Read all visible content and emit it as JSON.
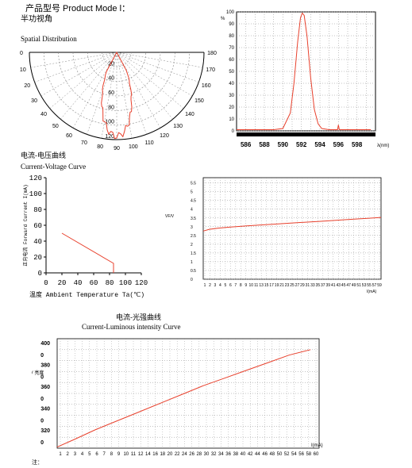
{
  "header": {
    "product_model": "产品型号  Product Mode l：",
    "half_angle_cn": "半功视角"
  },
  "colors": {
    "curve": "#e8402c",
    "grid": "#888888",
    "axis": "#000000"
  },
  "chart_data": [
    {
      "id": "spatial",
      "type": "polar",
      "title": "Spatial Distribution",
      "angle_labels_left": [
        "0",
        "10",
        "20",
        "30",
        "40",
        "50",
        "60",
        "70",
        "80",
        "90"
      ],
      "angle_labels_right": [
        "180",
        "170",
        "160",
        "150",
        "140",
        "130",
        "120",
        "110",
        "100"
      ],
      "radial_labels": [
        "20",
        "40",
        "60",
        "80",
        "100",
        "120"
      ],
      "series": [
        {
          "values_deg": [
            90
          ],
          "half_angle_deg": 20
        }
      ]
    },
    {
      "id": "spectrum",
      "type": "line",
      "ylabel": "%",
      "xlabel": "λ(nm)",
      "xticks": [
        "586",
        "588",
        "590",
        "592",
        "594",
        "596",
        "598"
      ],
      "yticks": [
        "0",
        "10",
        "20",
        "30",
        "40",
        "50",
        "60",
        "70",
        "80",
        "90",
        "100"
      ],
      "xlim": [
        585,
        600
      ],
      "ylim": [
        0,
        100
      ],
      "grid": true,
      "x": [
        585,
        586,
        587,
        588,
        589,
        590,
        590.8,
        591.2,
        591.6,
        591.9,
        592.1,
        592.3,
        592.6,
        593.0,
        593.4,
        593.8,
        594.2,
        595,
        595.9,
        596.0,
        596.1,
        597,
        598,
        599.5
      ],
      "values": [
        1,
        1,
        1,
        1,
        1,
        2,
        15,
        40,
        75,
        95,
        99,
        97,
        80,
        45,
        18,
        6,
        2,
        1,
        1,
        5,
        1,
        1,
        1,
        1
      ]
    },
    {
      "id": "current-temperature",
      "type": "line",
      "title_cn": "电流-电压曲线",
      "title": "Current-Voltage Curve",
      "ylabel": "正向电流 Forward Current I(mA)",
      "xlabel": "温度 Ambient Temperature Ta(℃)",
      "xticks": [
        "0",
        "20",
        "40",
        "60",
        "80",
        "100",
        "120"
      ],
      "yticks": [
        "0",
        "20",
        "40",
        "60",
        "80",
        "100",
        "120"
      ],
      "xlim": [
        0,
        120
      ],
      "ylim": [
        0,
        120
      ],
      "grid": false,
      "x": [
        20,
        85,
        85
      ],
      "values": [
        50,
        12,
        0
      ]
    },
    {
      "id": "voltage-current",
      "type": "line",
      "ylabel": "VF/V",
      "xlabel": "I(mA)",
      "xticks": [
        "1",
        "2",
        "3",
        "4",
        "5",
        "6",
        "7",
        "8",
        "9",
        "10",
        "11",
        "13",
        "15",
        "17",
        "19",
        "21",
        "23",
        "25",
        "27",
        "29",
        "31",
        "33",
        "35",
        "37",
        "39",
        "41",
        "43",
        "45",
        "47",
        "49",
        "51",
        "53",
        "55",
        "57",
        "59"
      ],
      "yticks": [
        "0",
        "0.5",
        "1",
        "1.5",
        "2",
        "2.5",
        "3",
        "3.5",
        "4",
        "4.5",
        "5",
        "5.5"
      ],
      "xlim": [
        1,
        60
      ],
      "ylim": [
        0,
        5.8
      ],
      "grid": true,
      "x": [
        1,
        3,
        6,
        10,
        15,
        20,
        25,
        30,
        35,
        40,
        45,
        50,
        55,
        60
      ],
      "values": [
        2.75,
        2.85,
        2.92,
        2.98,
        3.04,
        3.1,
        3.15,
        3.21,
        3.26,
        3.31,
        3.36,
        3.42,
        3.47,
        3.53
      ]
    },
    {
      "id": "current-luminous",
      "type": "line",
      "title_cn": "电流-光强曲线",
      "title": "Current-Luminous intensity Curve",
      "ylabel": "IV 亮度",
      "xlabel": "I(mA)",
      "xticks": [
        "1",
        "2",
        "3",
        "4",
        "5",
        "6",
        "7",
        "8",
        "9",
        "10",
        "11",
        "12",
        "14",
        "16",
        "18",
        "20",
        "22",
        "24",
        "26",
        "28",
        "30",
        "32",
        "34",
        "36",
        "38",
        "40",
        "42",
        "44",
        "46",
        "48",
        "50",
        "52",
        "54",
        "56",
        "58",
        "60"
      ],
      "ytick_values": [
        "400",
        "380",
        "360",
        "340",
        "320"
      ],
      "ytick_zeros": [
        "0",
        "0",
        "0",
        "0",
        "0"
      ],
      "xlim": [
        1,
        62
      ],
      "ylim": [
        310,
        410
      ],
      "grid": true,
      "x": [
        1,
        5,
        10,
        15,
        20,
        25,
        30,
        35,
        40,
        45,
        50,
        55,
        60
      ],
      "values": [
        311,
        318,
        327,
        335,
        343,
        351,
        359,
        367,
        374,
        381,
        388,
        395,
        400
      ]
    }
  ],
  "footer": {
    "note": "注："
  }
}
